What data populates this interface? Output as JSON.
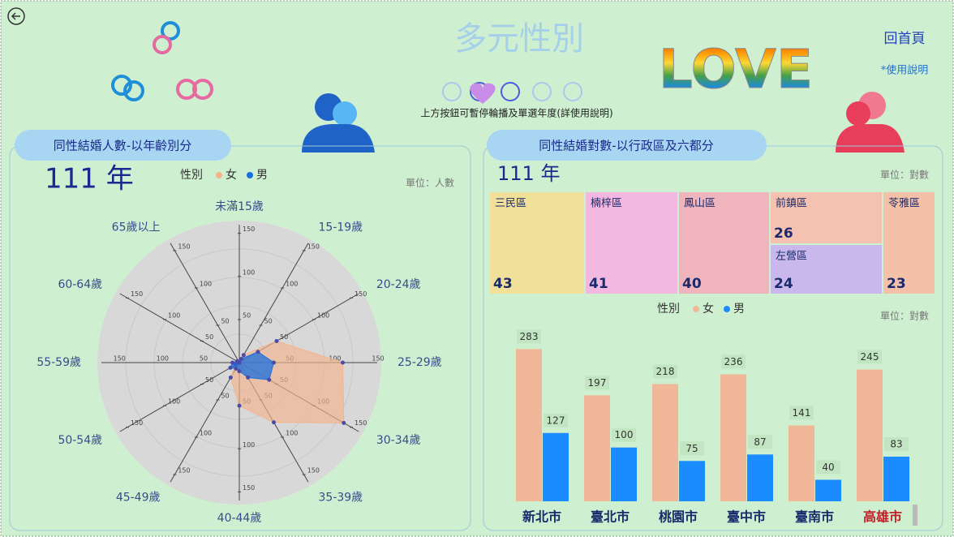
{
  "header": {
    "title": "多元性別",
    "home": "回首頁",
    "help": "*使用說明",
    "hint": "上方按鈕可暫停輪播及單選年度(詳使用說明)",
    "banner": "LOVE"
  },
  "chart_data": [
    {
      "type": "radar",
      "title": "同性結婚人數-以年齡別分",
      "subtitle": "111 年",
      "legend_title": "性別",
      "unit": "單位：人數",
      "categories": [
        "未滿15歲",
        "15-19歲",
        "20-24歲",
        "25-29歲",
        "30-34歲",
        "35-39歲",
        "40-44歲",
        "45-49歲",
        "50-54歲",
        "55-59歲",
        "60-64歲",
        "65歲以上"
      ],
      "series": [
        {
          "name": "女",
          "color": "#f4b48c",
          "values": [
            0,
            10,
            50,
            120,
            140,
            80,
            50,
            20,
            5,
            3,
            2,
            1
          ]
        },
        {
          "name": "男",
          "color": "#1a6fdf",
          "values": [
            0,
            5,
            25,
            40,
            40,
            20,
            10,
            8,
            12,
            8,
            3,
            1
          ]
        }
      ],
      "rlim": [
        0,
        160
      ],
      "rticks": [
        50,
        100,
        150
      ]
    },
    {
      "type": "treemap",
      "title": "同性結婚對數-以行政區及六都分",
      "subtitle": "111 年",
      "unit": "單位：對數",
      "categories": [
        "三民區",
        "楠梓區",
        "鳳山區",
        "前鎮區",
        "左營區",
        "苓雅區"
      ],
      "values": [
        43,
        41,
        40,
        26,
        24,
        23
      ],
      "colors": [
        "#f0e09a",
        "#f3b8e0",
        "#f0b4bc",
        "#f5c2b2",
        "#c9b8ec",
        "#f5c0a8"
      ]
    },
    {
      "type": "bar",
      "legend_title": "性別",
      "unit": "單位：對數",
      "categories": [
        "新北市",
        "臺北市",
        "桃園市",
        "臺中市",
        "臺南市",
        "高雄市"
      ],
      "label_colors": [
        "#1a2a6c",
        "#1a2a6c",
        "#1a2a6c",
        "#1a2a6c",
        "#1a2a6c",
        "#c0202a"
      ],
      "series": [
        {
          "name": "女",
          "color": "#f0b898",
          "values": [
            283,
            197,
            218,
            236,
            141,
            245
          ]
        },
        {
          "name": "男",
          "color": "#1a8cff",
          "values": [
            127,
            100,
            75,
            87,
            40,
            83
          ]
        }
      ],
      "ylim": [
        0,
        300
      ]
    }
  ]
}
